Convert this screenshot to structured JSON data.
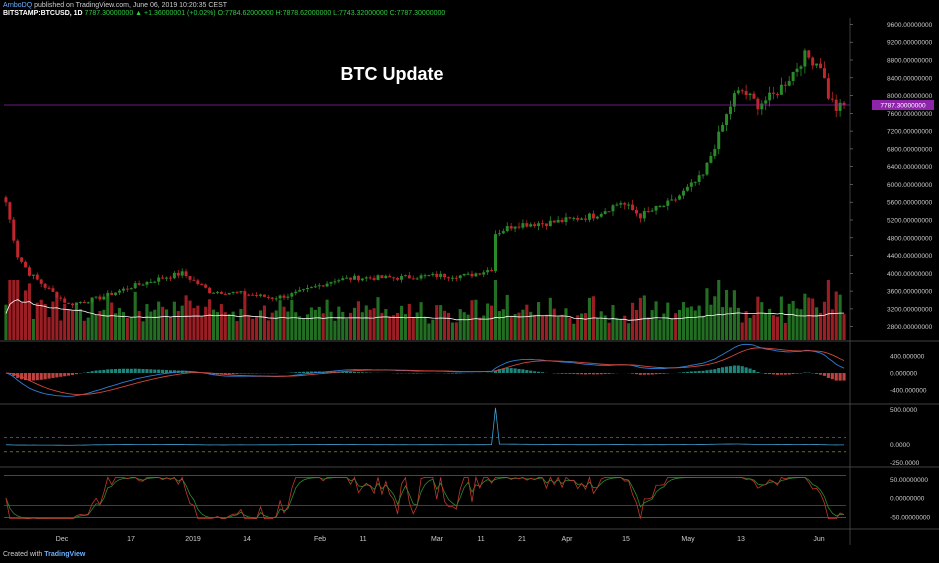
{
  "header": {
    "author": "ArnboDQ",
    "published": "published on TradingView.com, June 06, 2019 10:20:35 CEST",
    "symbol": "BITSTAMP:BTCUSD, 1D",
    "ohlc": "7787.30000000 ▲ +1.36000001 (+0.02%) O:7784.62000000 H:7878.62000000 L:7743.32000000 C:7787.30000000"
  },
  "footer": {
    "created": "Created with",
    "brand": "TradingView"
  },
  "colors": {
    "up": "#2a8a2a",
    "down": "#c0262c",
    "hline": "#8e24aa",
    "ma": "#ffffff",
    "macd": "#2d7fd6",
    "signal": "#d0473b",
    "cci": "#3fa0d0",
    "stoch_k": "#c0392b",
    "stoch_d": "#2e8b2e"
  },
  "chart_data": [
    {
      "type": "candlestick",
      "title": "BTC Update",
      "x_ticks": [
        "Dec",
        "17",
        "2019",
        "14",
        "Feb",
        "11",
        "Mar",
        "11",
        "21",
        "Apr",
        "15",
        "May",
        "13",
        "Jun"
      ],
      "y_ticks": [
        "9600.00000000",
        "9200.00000000",
        "8800.00000000",
        "8400.00000000",
        "8000.00000000",
        "7600.00000000",
        "7200.00000000",
        "6800.00000000",
        "6400.00000000",
        "6000.00000000",
        "5600.00000000",
        "5200.00000000",
        "4800.00000000",
        "4400.00000000",
        "4000.00000000",
        "3600.00000000",
        "3200.00000000",
        "2800.00000000"
      ],
      "ylim": [
        2500,
        9700
      ],
      "last_price_label": "7787.30000000",
      "last_price": 7787.3,
      "close_waypoints": [
        [
          0,
          5600
        ],
        [
          3,
          4400
        ],
        [
          6,
          4000
        ],
        [
          10,
          3700
        ],
        [
          16,
          3300
        ],
        [
          24,
          3450
        ],
        [
          32,
          3700
        ],
        [
          40,
          3900
        ],
        [
          45,
          4000
        ],
        [
          52,
          3600
        ],
        [
          60,
          3550
        ],
        [
          68,
          3450
        ],
        [
          72,
          3500
        ],
        [
          76,
          3600
        ],
        [
          84,
          3850
        ],
        [
          90,
          3900
        ],
        [
          100,
          3900
        ],
        [
          110,
          3950
        ],
        [
          118,
          3950
        ],
        [
          124,
          4100
        ],
        [
          125,
          4900
        ],
        [
          130,
          5100
        ],
        [
          140,
          5150
        ],
        [
          150,
          5300
        ],
        [
          157,
          5600
        ],
        [
          162,
          5300
        ],
        [
          170,
          5600
        ],
        [
          178,
          6200
        ],
        [
          182,
          7100
        ],
        [
          186,
          8000
        ],
        [
          188,
          8100
        ],
        [
          192,
          7800
        ],
        [
          196,
          8000
        ],
        [
          200,
          8400
        ],
        [
          204,
          8900
        ],
        [
          208,
          8700
        ],
        [
          210,
          8000
        ],
        [
          212,
          7700
        ],
        [
          214,
          7787
        ]
      ],
      "volume_relative_scale": [
        0,
        1
      ]
    },
    {
      "type": "line",
      "indicator": "MACD",
      "y_ticks": [
        "400.000000",
        "0.000000",
        "-400.000000"
      ]
    },
    {
      "type": "line",
      "indicator": "CCI",
      "y_ticks": [
        "500.0000",
        "0.0000",
        "-250.0000"
      ]
    },
    {
      "type": "line",
      "indicator": "Stochastic RSI",
      "y_ticks": [
        "50.00000000",
        "0.00000000",
        "-50.00000000"
      ]
    }
  ]
}
